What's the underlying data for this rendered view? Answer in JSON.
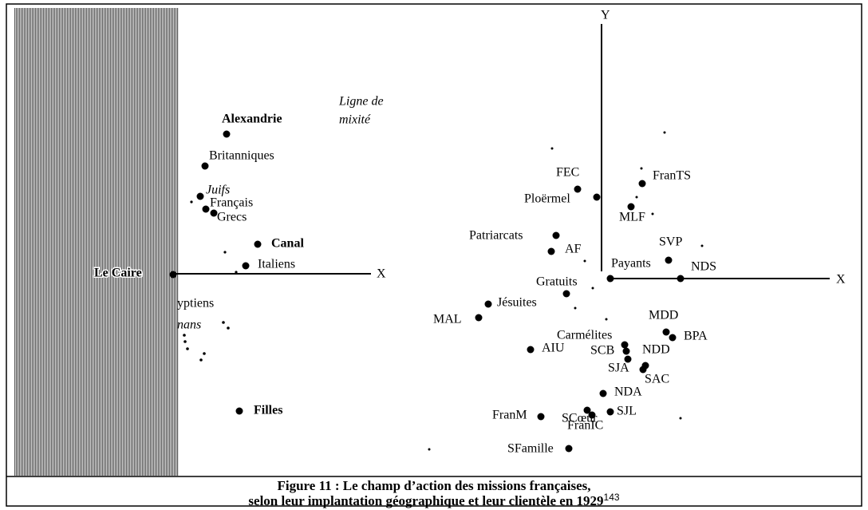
{
  "left": {
    "labels": [
      "Alexandrie",
      "Britanniques",
      "Juifs",
      "Français",
      "Grecs",
      "Canal",
      "Italiens",
      "Le Caire",
      "yptiens",
      "nans",
      "Filles"
    ],
    "annotation": [
      "Ligne de",
      "mixité"
    ],
    "x_axis": "X"
  },
  "right": {
    "labels": [
      "FEC",
      "Ploërmel",
      "FranTS",
      "MLF",
      "Patriarcats",
      "AF",
      "SVP",
      "Payants",
      "NDS",
      "Gratuits",
      "Jésuites",
      "MAL",
      "MDD",
      "BPA",
      "Carmélites",
      "SCB",
      "NDD",
      "SJA",
      "SAC",
      "AIU",
      "NDA",
      "SCœur",
      "FranM",
      "FranIC",
      "SJL",
      "SFamille"
    ],
    "x_axis": "X",
    "y_axis": "Y"
  },
  "caption": {
    "line1": "Figure 11 : Le champ d’action des missions françaises,",
    "line2": "selon leur implantation géographique et leur clientèle en 1929",
    "footnote": "143"
  }
}
